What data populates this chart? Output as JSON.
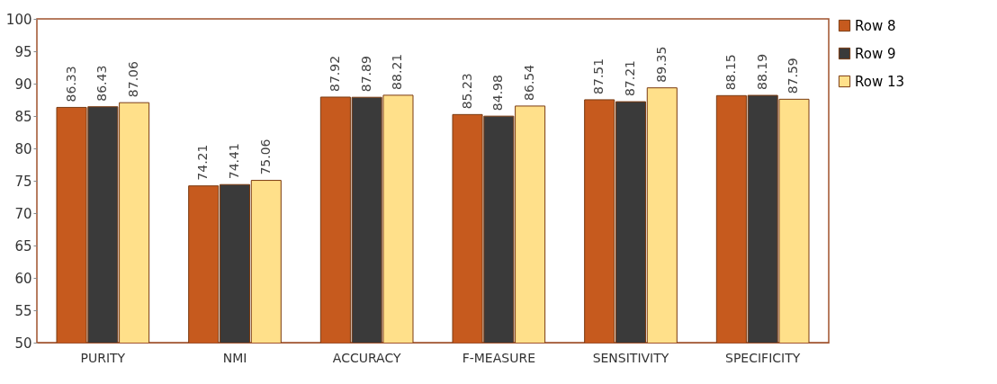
{
  "chart_data": {
    "type": "bar",
    "categories": [
      "PURITY",
      "NMI",
      "ACCURACY",
      "F-MEASURE",
      "SENSITIVITY",
      "SPECIFICITY"
    ],
    "series": [
      {
        "name": "Row 8",
        "color": "#c65a1e",
        "values": [
          86.33,
          74.21,
          87.92,
          85.23,
          87.51,
          88.15
        ]
      },
      {
        "name": "Row 9",
        "color": "#3a3a3a",
        "values": [
          86.43,
          74.41,
          87.89,
          84.98,
          87.21,
          88.19
        ]
      },
      {
        "name": "Row 13",
        "color": "#ffe08a",
        "values": [
          87.06,
          75.06,
          88.21,
          86.54,
          89.35,
          87.59
        ]
      }
    ],
    "ylim": [
      50,
      100
    ],
    "yticks": [
      50,
      55,
      60,
      65,
      70,
      75,
      80,
      85,
      90,
      95,
      100
    ],
    "grid": false,
    "legend": "right",
    "data_labels": true
  }
}
